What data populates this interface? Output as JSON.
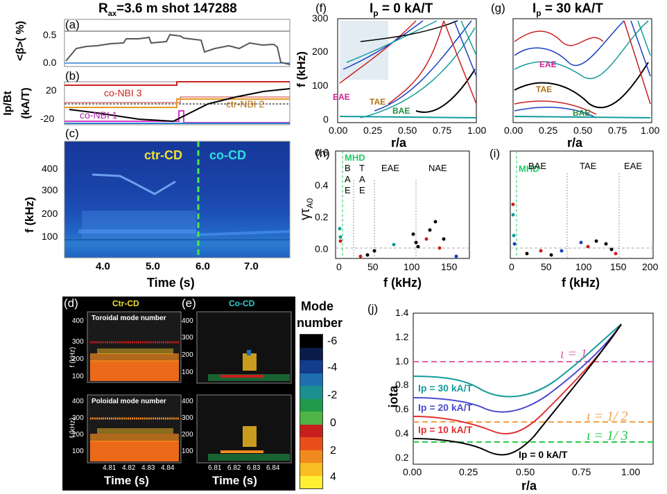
{
  "title": {
    "prefix": "R",
    "sub": "ax",
    "rest": "=3.6 m shot 147288"
  },
  "panels": {
    "a": {
      "label": "(a)",
      "ylabel": "<β>( %)",
      "yticks": [
        "0.5",
        "0.0"
      ]
    },
    "b": {
      "label": "(b)",
      "ylabel1": "Ip/Bt",
      "ylabel2": "(kA/T)",
      "yticks": [
        "20",
        "-20"
      ],
      "traces": [
        "co-NBI 3",
        "ctr-NBI 2",
        "co-NBI 1"
      ]
    },
    "c": {
      "label": "(c)",
      "ylabel": "f (kHz)",
      "yticks": [
        "400",
        "300",
        "200",
        "100"
      ],
      "xticks": [
        "4.0",
        "5.0",
        "6.0",
        "7.0"
      ],
      "xlabel": "Time (s)",
      "annot_left": "ctr-CD",
      "annot_right": "co-CD"
    },
    "d": {
      "label": "(d)",
      "title": "Ctr-CD",
      "sub_top": "Toroidal mode number",
      "sub_bot": "Poloidal mode number",
      "ylabel": "f (kHz)",
      "yticks": [
        "400",
        "300",
        "200",
        "100"
      ],
      "xticks": [
        "4.81",
        "4.82",
        "4.83",
        "4.84"
      ],
      "xlabel": "Time (s)"
    },
    "e": {
      "label": "(e)",
      "title": "Co-CD",
      "yticks": [
        "400",
        "300",
        "200",
        "100"
      ],
      "xticks": [
        "6.81",
        "6.82",
        "6.83",
        "6.84"
      ],
      "xlabel": "Time (s)"
    },
    "colorbar": {
      "title1": "Mode",
      "title2": "number",
      "ticks": [
        "-6",
        "-4",
        "-2",
        "0",
        "2",
        "4"
      ],
      "colors": [
        "#000000",
        "#0b1c4a",
        "#123c8c",
        "#1e6fb0",
        "#1a8f8f",
        "#1f9a4a",
        "#4eb446",
        "#c81e1e",
        "#ea4f1a",
        "#f18a1e",
        "#f8be22",
        "#fff033"
      ]
    },
    "f": {
      "label": "(f)",
      "title": "I",
      "title_sub": "p",
      "title_rest": " = 0 kA/T",
      "ylabel": "f (kHz)",
      "yticks": [
        "300",
        "200",
        "100",
        "0"
      ],
      "xticks": [
        "0.00",
        "0.25",
        "0.50",
        "0.75",
        "1.00"
      ],
      "xlabel": "r/a",
      "gaps": [
        "EAE",
        "TAE",
        "BAE"
      ]
    },
    "g": {
      "label": "(g)",
      "title": "I",
      "title_sub": "p",
      "title_rest": " = 30 kA/T",
      "xticks": [
        "0.00",
        "0.25",
        "0.50",
        "0.75",
        "1.00"
      ],
      "xlabel": "r/a",
      "gaps": [
        "EAE",
        "TAE",
        "BAE"
      ]
    },
    "h": {
      "label": "(h)",
      "ylabel": "γτ",
      "ylabel_sub": "A0",
      "yticks": [
        "0.6",
        "0.4",
        "0.2",
        "0.0"
      ],
      "xticks": [
        "0",
        "50",
        "100",
        "150"
      ],
      "xlabel": "f (kHz)",
      "regions": [
        "MHD",
        "B",
        "A",
        "E",
        "T",
        "A",
        "E",
        "EAE",
        "NAE"
      ]
    },
    "i": {
      "label": "(i)",
      "xticks": [
        "0",
        "50",
        "100",
        "150",
        "200"
      ],
      "xlabel": "f (kHz)",
      "regions": [
        "MHD",
        "BAE",
        "TAE",
        "EAE"
      ]
    },
    "j": {
      "label": "(j)",
      "ylabel": "iota",
      "xlabel": "r/a",
      "yticks": [
        "1.4",
        "1.2",
        "1.0",
        "0.8",
        "0.6",
        "0.4",
        "0.2"
      ],
      "xticks": [
        "0.00",
        "0.25",
        "0.50",
        "0.75",
        "1.00"
      ],
      "rational": [
        {
          "label": "ι = 1",
          "value": 1.0,
          "color": "#e0609e"
        },
        {
          "label": "ι = 1/ 2",
          "value": 0.5,
          "color": "#f0a040"
        },
        {
          "label": "ι = 1/ 3",
          "value": 0.333,
          "color": "#22cc44"
        }
      ],
      "profiles": [
        {
          "label": "Ip = 30 kA/T",
          "color": "#139a9a"
        },
        {
          "label": "Ip = 20 kA/T",
          "color": "#4a4ad0"
        },
        {
          "label": "Ip = 10 kA/T",
          "color": "#e03030"
        },
        {
          "label": "Ip = 0 kA/T",
          "color": "#000000"
        }
      ]
    }
  }
}
